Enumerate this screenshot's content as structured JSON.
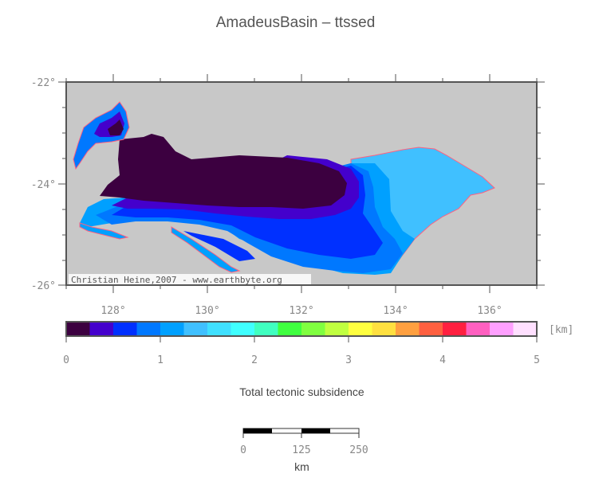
{
  "map": {
    "title": "AmadeusBasin – ttssed",
    "lat_labels": [
      "-22°",
      "-24°",
      "-26°"
    ],
    "lon_labels": [
      "128°",
      "130°",
      "132°",
      "134°",
      "136°"
    ],
    "credit": "Christian Heine,2007 - www.earthbyte.org",
    "ocean_color": "#c8c8c8"
  },
  "colorbar": {
    "unit": "[km]",
    "tick_labels": [
      "0",
      "1",
      "2",
      "3",
      "4",
      "5"
    ],
    "colors": [
      "#3c0040",
      "#4400cc",
      "#0030ff",
      "#0078ff",
      "#00a0ff",
      "#40c0ff",
      "#40e0ff",
      "#40ffff",
      "#40ffc0",
      "#40ff40",
      "#80ff40",
      "#c0ff40",
      "#ffff40",
      "#ffe040",
      "#ffa040",
      "#ff6040",
      "#ff2040",
      "#ff60c0",
      "#ffa0ff",
      "#ffe0ff"
    ],
    "label": "Total tectonic subsidence"
  },
  "scalebar": {
    "tick_labels": [
      "0",
      "125",
      "250"
    ],
    "unit": "km"
  }
}
